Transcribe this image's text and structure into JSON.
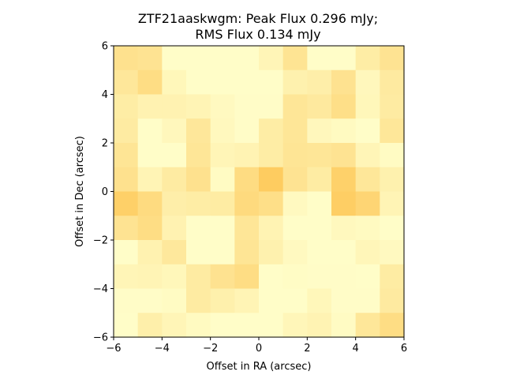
{
  "chart_data": {
    "type": "heatmap",
    "title_line1": "ZTF21aaskwgm: Peak Flux 0.296 mJy;",
    "title_line2": "RMS Flux 0.134 mJy",
    "xlabel": "Offset in RA (arcsec)",
    "ylabel": "Offset in Dec (arcsec)",
    "xlim": [
      -6,
      6
    ],
    "ylim": [
      -6,
      6
    ],
    "xticks": [
      -6,
      -4,
      -2,
      0,
      2,
      4,
      6
    ],
    "yticks": [
      -6,
      -4,
      -2,
      0,
      2,
      4,
      6
    ],
    "xtick_labels": [
      "−6",
      "−4",
      "−2",
      "0",
      "2",
      "4",
      "6"
    ],
    "ytick_labels": [
      "−6",
      "−4",
      "−2",
      "0",
      "2",
      "4",
      "6"
    ],
    "colormap": [
      "#ffffcc",
      "#fee391",
      "#fec44f",
      "#fe9929"
    ],
    "grid": false,
    "rows_top_to_bottom": [
      [
        0.35,
        0.33,
        0.02,
        0.02,
        0.02,
        0.02,
        0.12,
        0.32,
        0.02,
        0.02,
        0.22,
        0.33
      ],
      [
        0.28,
        0.4,
        0.1,
        0.02,
        0.02,
        0.02,
        0.02,
        0.17,
        0.2,
        0.34,
        0.09,
        0.25
      ],
      [
        0.22,
        0.15,
        0.15,
        0.13,
        0.07,
        0.03,
        0.03,
        0.3,
        0.26,
        0.38,
        0.1,
        0.24
      ],
      [
        0.24,
        0.02,
        0.09,
        0.28,
        0.08,
        0.03,
        0.22,
        0.3,
        0.09,
        0.06,
        0.02,
        0.29
      ],
      [
        0.31,
        0.02,
        0.02,
        0.3,
        0.12,
        0.14,
        0.22,
        0.31,
        0.3,
        0.33,
        0.12,
        0.05
      ],
      [
        0.35,
        0.13,
        0.24,
        0.35,
        0.05,
        0.41,
        0.58,
        0.33,
        0.23,
        0.53,
        0.29,
        0.17
      ],
      [
        0.54,
        0.42,
        0.2,
        0.22,
        0.23,
        0.43,
        0.38,
        0.07,
        0.02,
        0.56,
        0.48,
        0.13
      ],
      [
        0.33,
        0.4,
        0.15,
        0.02,
        0.02,
        0.3,
        0.14,
        0.02,
        0.02,
        0.08,
        0.06,
        0.02
      ],
      [
        0.02,
        0.16,
        0.27,
        0.02,
        0.02,
        0.31,
        0.17,
        0.07,
        0.02,
        0.02,
        0.11,
        0.07
      ],
      [
        0.12,
        0.13,
        0.1,
        0.24,
        0.34,
        0.4,
        0.02,
        0.04,
        0.03,
        0.03,
        0.02,
        0.23
      ],
      [
        0.03,
        0.03,
        0.05,
        0.24,
        0.18,
        0.13,
        0.02,
        0.02,
        0.1,
        0.03,
        0.03,
        0.25
      ],
      [
        0.02,
        0.19,
        0.12,
        0.06,
        0.02,
        0.02,
        0.02,
        0.11,
        0.14,
        0.05,
        0.29,
        0.4
      ]
    ]
  }
}
